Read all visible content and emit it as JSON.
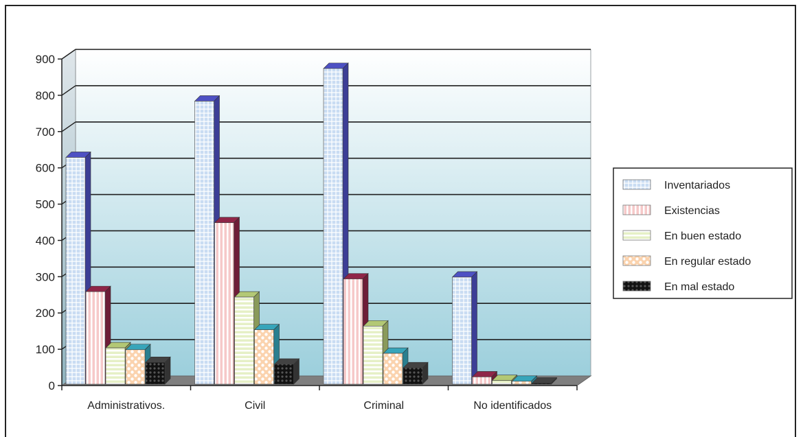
{
  "colors": {
    "background_top": "#ffffff",
    "background_bottom": "#9ccfdc",
    "floor": "#7f7f7f",
    "gridline": "#1e1e1e"
  },
  "chart_data": {
    "type": "bar",
    "title": "",
    "xlabel": "",
    "ylabel": "",
    "ylim": [
      0,
      900
    ],
    "yticks": [
      0,
      100,
      200,
      300,
      400,
      500,
      600,
      700,
      800,
      900
    ],
    "grid": true,
    "legend_position": "right",
    "categories": [
      "Administrativos.",
      "Civil",
      "Criminal",
      "No identificados"
    ],
    "series": [
      {
        "name": "Inventariados",
        "values": [
          625,
          780,
          870,
          295
        ],
        "color": "#c9dcf2",
        "side": "#3c3e96",
        "pattern": "grid"
      },
      {
        "name": "Existencias",
        "values": [
          255,
          445,
          290,
          20
        ],
        "color": "#f6c9c9",
        "side": "#6e1d37",
        "pattern": "vstripes"
      },
      {
        "name": "En buen estado",
        "values": [
          100,
          240,
          160,
          10
        ],
        "color": "#e6f0c6",
        "side": "#8a9a5a",
        "pattern": "hstripes"
      },
      {
        "name": "En regular estado",
        "values": [
          95,
          150,
          85,
          8
        ],
        "color": "#fbd3ae",
        "side": "#2a7f8f",
        "pattern": "dots"
      },
      {
        "name": "En mal estado",
        "values": [
          60,
          55,
          45,
          3
        ],
        "color": "#111111",
        "side": "#333333",
        "pattern": "dark"
      }
    ]
  }
}
